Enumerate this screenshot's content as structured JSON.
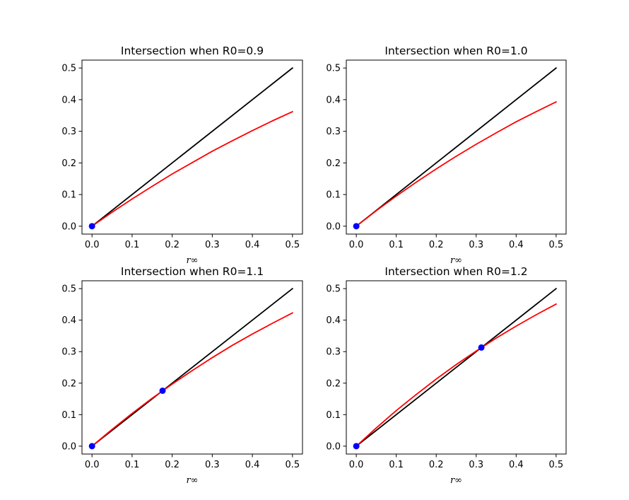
{
  "chart_data": [
    {
      "type": "line",
      "title": "Intersection when R0=0.9",
      "xlabel": "r∞",
      "ylabel": "",
      "xlim": [
        -0.025,
        0.525
      ],
      "ylim": [
        -0.025,
        0.525
      ],
      "xticks": [
        "0.0",
        "0.1",
        "0.2",
        "0.3",
        "0.4",
        "0.5"
      ],
      "yticks": [
        "0.0",
        "0.1",
        "0.2",
        "0.3",
        "0.4",
        "0.5"
      ],
      "grid": false,
      "series": [
        {
          "color": "#000000",
          "x": [
            0,
            0.5
          ],
          "y": [
            0,
            0.5
          ]
        },
        {
          "color": "#ff0000",
          "x": [
            0,
            0.05,
            0.1,
            0.15,
            0.2,
            0.25,
            0.3,
            0.35,
            0.4,
            0.45,
            0.5
          ],
          "y": [
            0,
            0.044,
            0.086,
            0.126,
            0.165,
            0.201,
            0.237,
            0.27,
            0.302,
            0.333,
            0.362
          ]
        }
      ],
      "points": [
        {
          "color": "#0000ff",
          "x": [
            0
          ],
          "y": [
            0
          ]
        }
      ]
    },
    {
      "type": "line",
      "title": "Intersection when R0=1.0",
      "xlabel": "r∞",
      "ylabel": "",
      "xlim": [
        -0.025,
        0.525
      ],
      "ylim": [
        -0.025,
        0.525
      ],
      "xticks": [
        "0.0",
        "0.1",
        "0.2",
        "0.3",
        "0.4",
        "0.5"
      ],
      "yticks": [
        "0.0",
        "0.1",
        "0.2",
        "0.3",
        "0.4",
        "0.5"
      ],
      "grid": false,
      "series": [
        {
          "color": "#000000",
          "x": [
            0,
            0.5
          ],
          "y": [
            0,
            0.5
          ]
        },
        {
          "color": "#ff0000",
          "x": [
            0,
            0.05,
            0.1,
            0.15,
            0.2,
            0.25,
            0.3,
            0.35,
            0.4,
            0.45,
            0.5
          ],
          "y": [
            0,
            0.049,
            0.095,
            0.139,
            0.181,
            0.221,
            0.259,
            0.295,
            0.33,
            0.362,
            0.393
          ]
        }
      ],
      "points": [
        {
          "color": "#0000ff",
          "x": [
            0
          ],
          "y": [
            0
          ]
        }
      ]
    },
    {
      "type": "line",
      "title": "Intersection when R0=1.1",
      "xlabel": "r∞",
      "ylabel": "",
      "xlim": [
        -0.025,
        0.525
      ],
      "ylim": [
        -0.025,
        0.525
      ],
      "xticks": [
        "0.0",
        "0.1",
        "0.2",
        "0.3",
        "0.4",
        "0.5"
      ],
      "yticks": [
        "0.0",
        "0.1",
        "0.2",
        "0.3",
        "0.4",
        "0.5"
      ],
      "grid": false,
      "series": [
        {
          "color": "#000000",
          "x": [
            0,
            0.5
          ],
          "y": [
            0,
            0.5
          ]
        },
        {
          "color": "#ff0000",
          "x": [
            0,
            0.05,
            0.1,
            0.15,
            0.2,
            0.25,
            0.3,
            0.35,
            0.4,
            0.45,
            0.5
          ],
          "y": [
            0,
            0.053,
            0.104,
            0.152,
            0.197,
            0.24,
            0.281,
            0.32,
            0.356,
            0.39,
            0.423
          ]
        }
      ],
      "points": [
        {
          "color": "#0000ff",
          "x": [
            0,
            0.176
          ],
          "y": [
            0,
            0.176
          ]
        }
      ]
    },
    {
      "type": "line",
      "title": "Intersection when R0=1.2",
      "xlabel": "r∞",
      "ylabel": "",
      "xlim": [
        -0.025,
        0.525
      ],
      "ylim": [
        -0.025,
        0.525
      ],
      "xticks": [
        "0.0",
        "0.1",
        "0.2",
        "0.3",
        "0.4",
        "0.5"
      ],
      "yticks": [
        "0.0",
        "0.1",
        "0.2",
        "0.3",
        "0.4",
        "0.5"
      ],
      "grid": false,
      "series": [
        {
          "color": "#000000",
          "x": [
            0,
            0.5
          ],
          "y": [
            0,
            0.5
          ]
        },
        {
          "color": "#ff0000",
          "x": [
            0,
            0.05,
            0.1,
            0.15,
            0.2,
            0.25,
            0.3,
            0.35,
            0.4,
            0.45,
            0.5
          ],
          "y": [
            0,
            0.058,
            0.113,
            0.164,
            0.213,
            0.259,
            0.302,
            0.343,
            0.381,
            0.417,
            0.451
          ]
        }
      ],
      "points": [
        {
          "color": "#0000ff",
          "x": [
            0,
            0.313
          ],
          "y": [
            0,
            0.313
          ]
        }
      ]
    }
  ]
}
